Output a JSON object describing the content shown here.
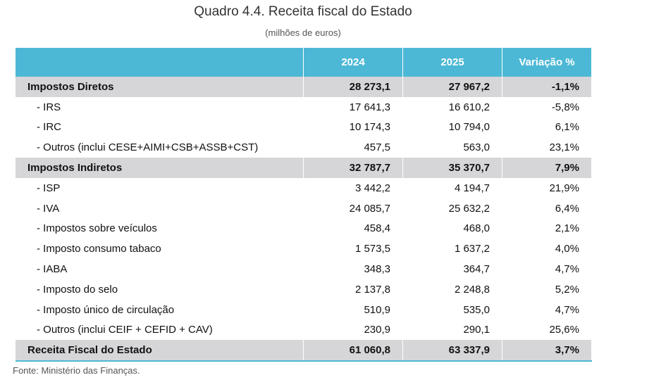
{
  "header": {
    "title": "Quadro 4.4. Receita fiscal do Estado",
    "subtitle": "(milhões de euros)"
  },
  "table": {
    "columns": [
      "2024",
      "2025",
      "Variação %"
    ],
    "rows": [
      [
        "Impostos Diretos",
        "28 273,1",
        "27 967,2",
        "-1,1%"
      ],
      [
        "- IRS",
        "17 641,3",
        "16 610,2",
        "-5,8%"
      ],
      [
        "- IRC",
        "10 174,3",
        "10 794,0",
        "6,1%"
      ],
      [
        "- Outros (inclui CESE+AIMI+CSB+ASSB+CST)",
        "457,5",
        "563,0",
        "23,1%"
      ],
      [
        "Impostos Indiretos",
        "32 787,7",
        "35 370,7",
        "7,9%"
      ],
      [
        "- ISP",
        "3 442,2",
        "4 194,7",
        "21,9%"
      ],
      [
        "- IVA",
        "24 085,7",
        "25 632,2",
        "6,4%"
      ],
      [
        "- Impostos sobre veículos",
        "458,4",
        "468,0",
        "2,1%"
      ],
      [
        "- Imposto consumo tabaco",
        "1 573,5",
        "1 637,2",
        "4,0%"
      ],
      [
        "- IABA",
        "348,3",
        "364,7",
        "4,7%"
      ],
      [
        "- Imposto do selo",
        "2 137,8",
        "2 248,8",
        "5,2%"
      ],
      [
        "- Imposto único de circulação",
        "510,9",
        "535,0",
        "4,7%"
      ],
      [
        "- Outros (inclui CEIF + CEFID + CAV)",
        "230,9",
        "290,1",
        "25,6%"
      ],
      [
        "Receita Fiscal do Estado",
        "61 060,8",
        "63 337,9",
        "3,7%"
      ]
    ]
  },
  "footer": {
    "source": "Fonte: Ministério das Finanças."
  }
}
